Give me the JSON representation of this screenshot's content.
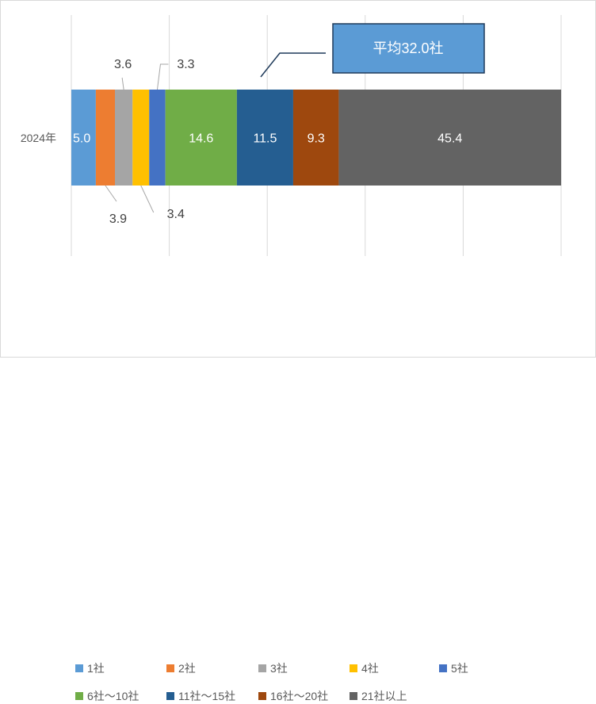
{
  "chart_data": {
    "type": "bar",
    "orientation": "horizontal",
    "stacked": true,
    "categories": [
      "2024年"
    ],
    "series": [
      {
        "name": "1社",
        "values": [
          5.0
        ],
        "color": "#5b9bd5"
      },
      {
        "name": "2社",
        "values": [
          3.9
        ],
        "color": "#ed7d31"
      },
      {
        "name": "3社",
        "values": [
          3.6
        ],
        "color": "#a5a5a5"
      },
      {
        "name": "4社",
        "values": [
          3.4
        ],
        "color": "#ffc000"
      },
      {
        "name": "5社",
        "values": [
          3.3
        ],
        "color": "#4472c4"
      },
      {
        "name": "6社～10社",
        "values": [
          14.6
        ],
        "color": "#70ad47"
      },
      {
        "name": "11社～15社",
        "values": [
          11.5
        ],
        "color": "#255e91"
      },
      {
        "name": "16社～20社",
        "values": [
          9.3
        ],
        "color": "#9e480e"
      },
      {
        "name": "21社以上",
        "values": [
          45.4
        ],
        "color": "#636363"
      }
    ],
    "data_labels": [
      "5.0",
      "3.9",
      "3.6",
      "3.4",
      "3.3",
      "14.6",
      "11.5",
      "9.3",
      "45.4"
    ],
    "xlim": [
      0,
      100
    ],
    "grid": true,
    "legend_position": "bottom",
    "annotation": "平均32.0社"
  }
}
